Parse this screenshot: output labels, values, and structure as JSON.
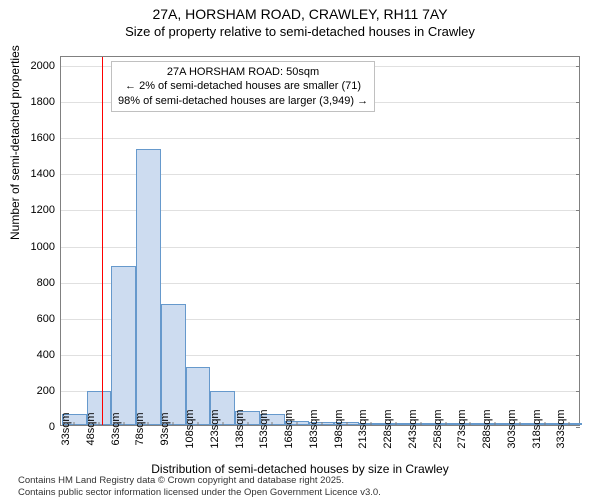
{
  "title": {
    "line1": "27A, HORSHAM ROAD, CRAWLEY, RH11 7AY",
    "line2": "Size of property relative to semi-detached houses in Crawley",
    "fontsize_main": 14,
    "fontsize_sub": 13
  },
  "chart": {
    "type": "histogram-bar",
    "background_color": "#ffffff",
    "grid_color": "#e0e0e0",
    "border_color": "#808080",
    "bar_fill": "#cddcf0",
    "bar_border": "#6699cc",
    "marker_color": "#ff0000",
    "marker_at_sqm": 50,
    "xlim_sqm": [
      25,
      340
    ],
    "ylim": [
      0,
      2050
    ],
    "ytick_start": 0,
    "ytick_step": 200,
    "ytick_end": 2000,
    "xtick_labels": [
      "33sqm",
      "48sqm",
      "63sqm",
      "78sqm",
      "93sqm",
      "108sqm",
      "123sqm",
      "138sqm",
      "153sqm",
      "168sqm",
      "183sqm",
      "198sqm",
      "213sqm",
      "228sqm",
      "243sqm",
      "258sqm",
      "273sqm",
      "288sqm",
      "303sqm",
      "318sqm",
      "333sqm"
    ],
    "xtick_sqm": [
      33,
      48,
      63,
      78,
      93,
      108,
      123,
      138,
      153,
      168,
      183,
      198,
      213,
      228,
      243,
      258,
      273,
      288,
      303,
      318,
      333
    ],
    "bars": [
      {
        "sqm": 33,
        "count": 60
      },
      {
        "sqm": 48,
        "count": 190
      },
      {
        "sqm": 63,
        "count": 880
      },
      {
        "sqm": 78,
        "count": 1530
      },
      {
        "sqm": 93,
        "count": 670
      },
      {
        "sqm": 108,
        "count": 320
      },
      {
        "sqm": 123,
        "count": 190
      },
      {
        "sqm": 138,
        "count": 75
      },
      {
        "sqm": 153,
        "count": 60
      },
      {
        "sqm": 168,
        "count": 20
      },
      {
        "sqm": 183,
        "count": 15
      },
      {
        "sqm": 198,
        "count": 15
      },
      {
        "sqm": 213,
        "count": 8
      },
      {
        "sqm": 228,
        "count": 4
      },
      {
        "sqm": 243,
        "count": 2
      },
      {
        "sqm": 258,
        "count": 2
      },
      {
        "sqm": 273,
        "count": 1
      },
      {
        "sqm": 288,
        "count": 1
      },
      {
        "sqm": 303,
        "count": 1
      },
      {
        "sqm": 318,
        "count": 1
      },
      {
        "sqm": 333,
        "count": 1
      }
    ],
    "bar_width_sqm": 15
  },
  "annotation": {
    "line1": "27A HORSHAM ROAD: 50sqm",
    "line2": "← 2% of semi-detached houses are smaller (71)",
    "line3": "98% of semi-detached houses are larger (3,949) →",
    "border_color": "#c0c0c0",
    "font_size": 11
  },
  "ylabel": "Number of semi-detached properties",
  "xlabel": "Distribution of semi-detached houses by size in Crawley",
  "footer": {
    "line1": "Contains HM Land Registry data © Crown copyright and database right 2025.",
    "line2": "Contains public sector information licensed under the Open Government Licence v3.0."
  }
}
